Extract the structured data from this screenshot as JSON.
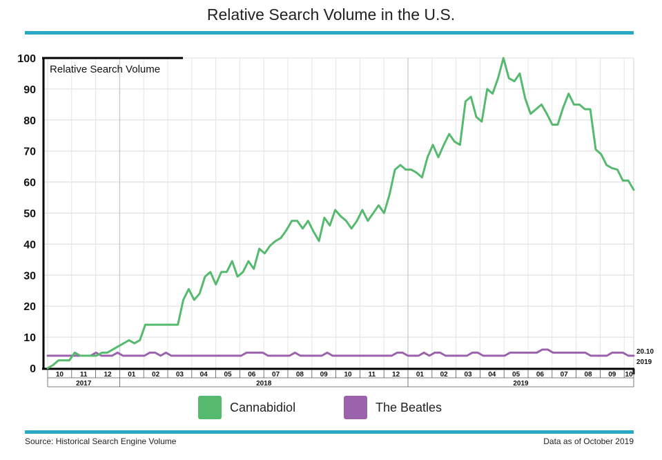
{
  "title": "Relative Search Volume in the U.S.",
  "source": "Source: Historical Search Engine Volume",
  "data_note": "Data as of October 2019",
  "colors": {
    "cannabidiol": "#55b96e",
    "beatles": "#9b62ac",
    "accent": "#2aa9c6"
  },
  "chart_data": {
    "type": "line",
    "title": "Relative Search Volume in the U.S.",
    "ylabel": "Relative Search Volume",
    "xlabel": "",
    "ylim": [
      0,
      100
    ],
    "yticks": [
      0,
      10,
      20,
      30,
      40,
      50,
      60,
      70,
      80,
      90,
      100
    ],
    "grid": true,
    "legend_position": "bottom",
    "x_start_label": "2017-10",
    "x_end_annotation": [
      "20.10",
      "2019"
    ],
    "month_labels": [
      "10",
      "11",
      "12",
      "01",
      "02",
      "03",
      "04",
      "05",
      "06",
      "07",
      "08",
      "09",
      "10",
      "11",
      "12",
      "01",
      "02",
      "03",
      "04",
      "05",
      "06",
      "07",
      "08",
      "09",
      "10"
    ],
    "year_labels": [
      {
        "label": "2017",
        "months": 3
      },
      {
        "label": "2018",
        "months": 12
      },
      {
        "label": "2019",
        "months": 10
      }
    ],
    "series": [
      {
        "name": "Cannabidiol",
        "color": "#55b96e",
        "values": [
          0,
          1,
          2.5,
          2.5,
          2.5,
          5,
          4,
          4,
          4,
          4,
          5,
          5,
          6,
          7,
          8,
          9,
          8,
          9,
          14,
          14,
          14,
          14,
          14,
          14,
          14,
          22,
          25.5,
          22,
          24,
          29.5,
          31,
          27,
          31,
          31,
          34.5,
          29.5,
          31,
          34.5,
          32,
          38.5,
          37,
          39.5,
          41,
          42,
          44.5,
          47.5,
          47.5,
          45,
          47.5,
          44,
          41,
          48.5,
          46,
          51,
          49,
          47.5,
          45,
          47.5,
          51,
          47.5,
          50,
          52.5,
          50,
          56,
          64,
          65.5,
          64,
          64,
          63,
          61.5,
          68,
          72,
          68,
          72,
          75.5,
          73,
          72,
          86,
          87.5,
          81,
          79.5,
          90,
          88.5,
          93.5,
          100,
          93.5,
          92.5,
          95,
          87,
          82,
          83.5,
          85,
          82,
          78.5,
          78.5,
          84,
          88.5,
          85,
          85,
          83.5,
          83.5,
          70.5,
          69,
          65.5,
          64.5,
          64,
          60.5,
          60.5,
          57.5
        ]
      },
      {
        "name": "The Beatles",
        "color": "#9b62ac",
        "values": [
          4,
          4,
          4,
          4,
          4,
          4,
          4,
          4,
          4,
          5,
          4,
          4,
          4,
          5,
          4,
          4,
          4,
          4,
          4,
          5,
          5,
          4,
          5,
          4,
          4,
          4,
          4,
          4,
          4,
          4,
          4,
          4,
          4,
          4,
          4,
          4,
          4,
          5,
          5,
          5,
          5,
          4,
          4,
          4,
          4,
          4,
          5,
          4,
          4,
          4,
          4,
          4,
          5,
          4,
          4,
          4,
          4,
          4,
          4,
          4,
          4,
          4,
          4,
          4,
          4,
          5,
          5,
          4,
          4,
          4,
          5,
          4,
          5,
          5,
          4,
          4,
          4,
          4,
          4,
          5,
          5,
          4,
          4,
          4,
          4,
          4,
          5,
          5,
          5,
          5,
          5,
          5,
          6,
          6,
          5,
          5,
          5,
          5,
          5,
          5,
          5,
          4,
          4,
          4,
          4,
          5,
          5,
          5,
          4,
          4
        ]
      }
    ]
  }
}
